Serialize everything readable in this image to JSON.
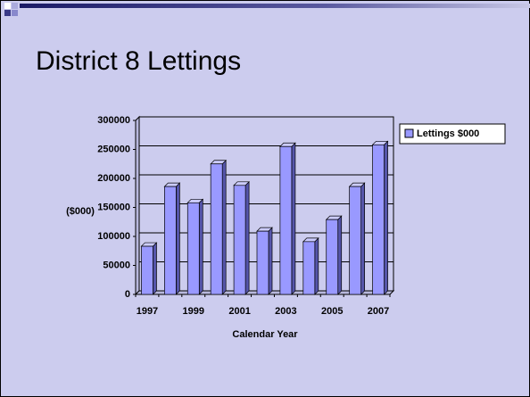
{
  "chart_data": {
    "type": "bar3d",
    "title": "District 8 Lettings",
    "categories": [
      "1997",
      null,
      "1999",
      null,
      "2001",
      null,
      "2003",
      null,
      "2005",
      null,
      "2007"
    ],
    "series": [
      {
        "name": "Lettings $000",
        "color": "#9999ff",
        "values": [
          83000,
          186000,
          158000,
          225000,
          188000,
          109000,
          255000,
          91000,
          129000,
          186000,
          258000
        ]
      }
    ],
    "xlabel": "Calendar Year",
    "ylabel": "($000)",
    "ylim": [
      0,
      300000
    ],
    "yticks": [
      0,
      50000,
      100000,
      150000,
      200000,
      250000,
      300000
    ],
    "grid": true,
    "legend": "right"
  }
}
